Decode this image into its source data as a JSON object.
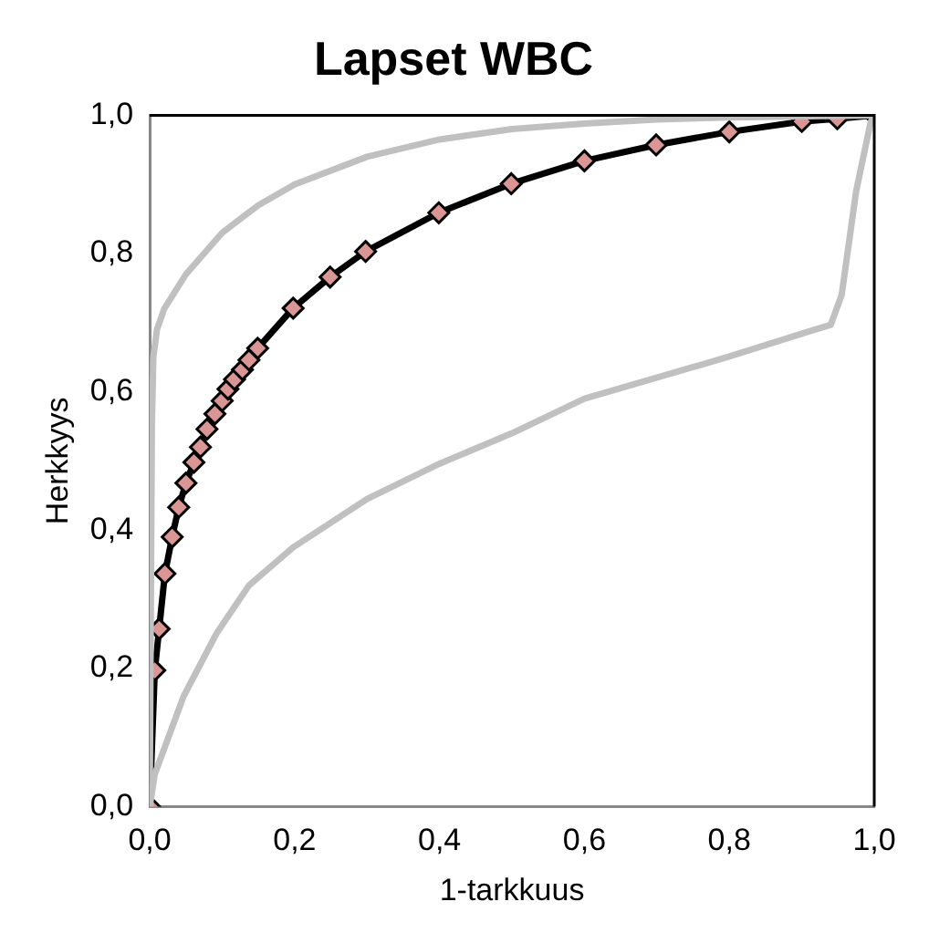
{
  "chart_data": {
    "type": "line",
    "title": "Lapset WBC",
    "xlabel": "1-tarkkuus",
    "ylabel": "Herkkyys",
    "xlim": [
      0,
      1
    ],
    "ylim": [
      0,
      1
    ],
    "xticks": [
      {
        "value": 0,
        "label": "0,0"
      },
      {
        "value": 0.2,
        "label": "0,2"
      },
      {
        "value": 0.4,
        "label": "0,4"
      },
      {
        "value": 0.6,
        "label": "0,6"
      },
      {
        "value": 0.8,
        "label": "0,8"
      },
      {
        "value": 1,
        "label": "1,0"
      }
    ],
    "yticks": [
      {
        "value": 0,
        "label": "0,0"
      },
      {
        "value": 0.2,
        "label": "0,2"
      },
      {
        "value": 0.4,
        "label": "0,4"
      },
      {
        "value": 0.6,
        "label": "0,6"
      },
      {
        "value": 0.8,
        "label": "0,8"
      },
      {
        "value": 1,
        "label": "1,0"
      }
    ],
    "grid": false,
    "legend": false,
    "series": [
      {
        "color": "#c0c0c0",
        "marker": "none",
        "x": [
          0,
          0.003,
          0.005,
          0.01,
          0.02,
          0.05,
          0.1,
          0.15,
          0.2,
          0.3,
          0.4,
          0.5,
          0.6,
          0.7,
          0.8,
          1
        ],
        "values": [
          0,
          0.55,
          0.65,
          0.69,
          0.72,
          0.77,
          0.83,
          0.87,
          0.9,
          0.94,
          0.965,
          0.98,
          0.988,
          0.994,
          0.997,
          1
        ]
      },
      {
        "color": "#c0c0c0",
        "marker": "none",
        "x": [
          0,
          0.007,
          0.047,
          0.092,
          0.137,
          0.198,
          0.3,
          0.4,
          0.5,
          0.6,
          0.8,
          0.9,
          0.94,
          0.955,
          0.975,
          0.995,
          1
        ],
        "values": [
          0,
          0.047,
          0.16,
          0.25,
          0.32,
          0.375,
          0.445,
          0.496,
          0.54,
          0.59,
          0.651,
          0.684,
          0.697,
          0.74,
          0.89,
          0.99,
          1
        ]
      },
      {
        "color": "#000000",
        "marker": "diamond",
        "x": [
          0,
          0.007,
          0.013,
          0.021,
          0.031,
          0.04,
          0.05,
          0.061,
          0.07,
          0.079,
          0.09,
          0.1,
          0.108,
          0.117,
          0.128,
          0.137,
          0.149,
          0.198,
          0.249,
          0.298,
          0.399,
          0.499,
          0.6,
          0.699,
          0.8,
          0.9,
          0.949,
          1
        ],
        "values": [
          0,
          0.197,
          0.257,
          0.337,
          0.39,
          0.433,
          0.468,
          0.498,
          0.52,
          0.546,
          0.568,
          0.587,
          0.604,
          0.618,
          0.632,
          0.646,
          0.663,
          0.721,
          0.766,
          0.803,
          0.859,
          0.901,
          0.934,
          0.957,
          0.976,
          0.991,
          0.995,
          1
        ]
      }
    ]
  }
}
